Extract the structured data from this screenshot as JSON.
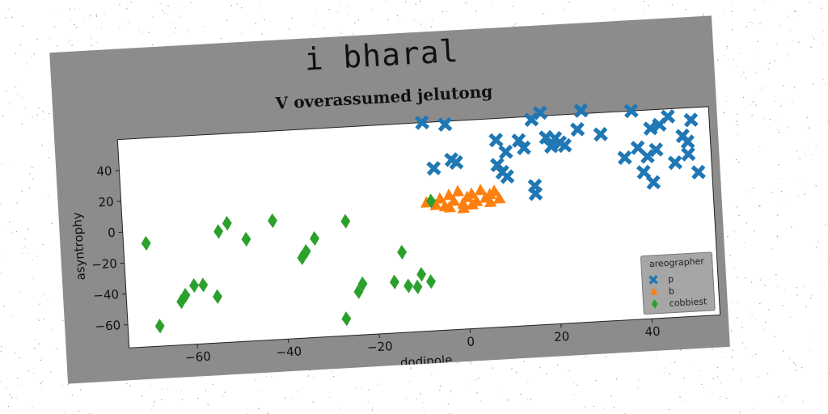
{
  "suptitle": "i bharal",
  "chart_data": {
    "type": "scatter",
    "title": "V overassumed jelutong",
    "xlabel": "dodipole",
    "ylabel": "asyntrophy",
    "xlim": [
      -75,
      55
    ],
    "ylim": [
      -75,
      60
    ],
    "xticks": [
      -60,
      -40,
      -20,
      0,
      20,
      40
    ],
    "yticks": [
      -60,
      -40,
      -20,
      0,
      20,
      40
    ],
    "legend": {
      "title": "areographer",
      "placement": "lower-right"
    },
    "grid": false,
    "series": [
      {
        "name": "p",
        "marker": "x",
        "color": "#1f77b4",
        "points": [
          [
            -8,
            60
          ],
          [
            -3,
            58
          ],
          [
            -6,
            30
          ],
          [
            -2,
            35
          ],
          [
            -1,
            33
          ],
          [
            8,
            46
          ],
          [
            10,
            38
          ],
          [
            8,
            30
          ],
          [
            9,
            25
          ],
          [
            10,
            22
          ],
          [
            13,
            45
          ],
          [
            14,
            40
          ],
          [
            16,
            15
          ],
          [
            16,
            10
          ],
          [
            16,
            58
          ],
          [
            18,
            62
          ],
          [
            19,
            46
          ],
          [
            20,
            40
          ],
          [
            21,
            45
          ],
          [
            22,
            42
          ],
          [
            23,
            40
          ],
          [
            26,
            50
          ],
          [
            27,
            62
          ],
          [
            31,
            46
          ],
          [
            36,
            30
          ],
          [
            38,
            60
          ],
          [
            39,
            36
          ],
          [
            41,
            30
          ],
          [
            40,
            20
          ],
          [
            42,
            13
          ],
          [
            42,
            48
          ],
          [
            43,
            34
          ],
          [
            44,
            50
          ],
          [
            46,
            55
          ],
          [
            47,
            25
          ],
          [
            49,
            42
          ],
          [
            50,
            30
          ],
          [
            50,
            38
          ],
          [
            51,
            52
          ],
          [
            52,
            18
          ]
        ]
      },
      {
        "name": "b",
        "marker": "triangle",
        "color": "#ff7f0e",
        "points": [
          [
            -8,
            8
          ],
          [
            -6,
            6
          ],
          [
            -5,
            10
          ],
          [
            -4,
            5
          ],
          [
            -3,
            12
          ],
          [
            -2,
            8
          ],
          [
            -1,
            14
          ],
          [
            0,
            6
          ],
          [
            1,
            10
          ],
          [
            2,
            12
          ],
          [
            3,
            7
          ],
          [
            4,
            14
          ],
          [
            5,
            9
          ],
          [
            6,
            11
          ],
          [
            7,
            13
          ],
          [
            8,
            8
          ],
          [
            -3,
            4
          ],
          [
            0,
            3
          ],
          [
            2,
            5
          ],
          [
            6,
            6
          ]
        ]
      },
      {
        "name": "cobbiest",
        "marker": "diamond",
        "color": "#2ca02c",
        "points": [
          [
            -70,
            -8
          ],
          [
            -68,
            -62
          ],
          [
            -63,
            -47
          ],
          [
            -62,
            -43
          ],
          [
            -60,
            -37
          ],
          [
            -58,
            -37
          ],
          [
            -55,
            -45
          ],
          [
            -54,
            -3
          ],
          [
            -52,
            2
          ],
          [
            -48,
            -9
          ],
          [
            -42,
            2
          ],
          [
            -36,
            -23
          ],
          [
            -35,
            -19
          ],
          [
            -33,
            -11
          ],
          [
            -27,
            -64
          ],
          [
            -26,
            -1
          ],
          [
            -24,
            -47
          ],
          [
            -23,
            -42
          ],
          [
            -16,
            -42
          ],
          [
            -14,
            -23
          ],
          [
            -13,
            -45
          ],
          [
            -11,
            -46
          ],
          [
            -10,
            -38
          ],
          [
            -8,
            -43
          ],
          [
            -7,
            9
          ]
        ]
      }
    ]
  }
}
